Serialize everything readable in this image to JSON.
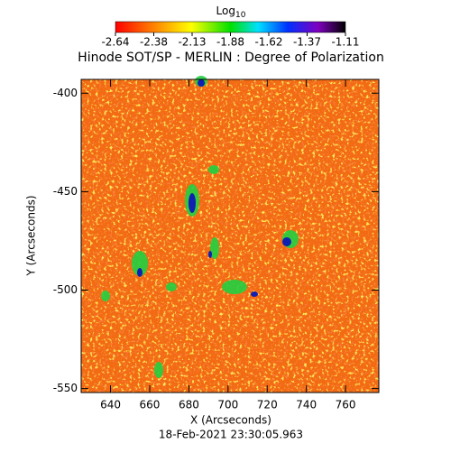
{
  "chart_data": {
    "type": "image",
    "title": "Hinode SOT/SP - MERLIN : Degree of Polarization",
    "colorbar_label": {
      "base": "Log",
      "subscript": "10"
    },
    "colorbar_ticks": [
      -2.64,
      -2.38,
      -2.13,
      -1.88,
      -1.62,
      -1.37,
      -1.11
    ],
    "xlabel": "X (Arcseconds)",
    "ylabel": "Y (Arcseconds)",
    "footer": "18-Feb-2021 23:30:05.963",
    "xlim": [
      625,
      777
    ],
    "xticks": [
      640,
      660,
      680,
      700,
      720,
      740,
      760
    ],
    "ylim": [
      -552,
      -393
    ],
    "yticks": [
      -550,
      -500,
      -450,
      -400
    ]
  }
}
